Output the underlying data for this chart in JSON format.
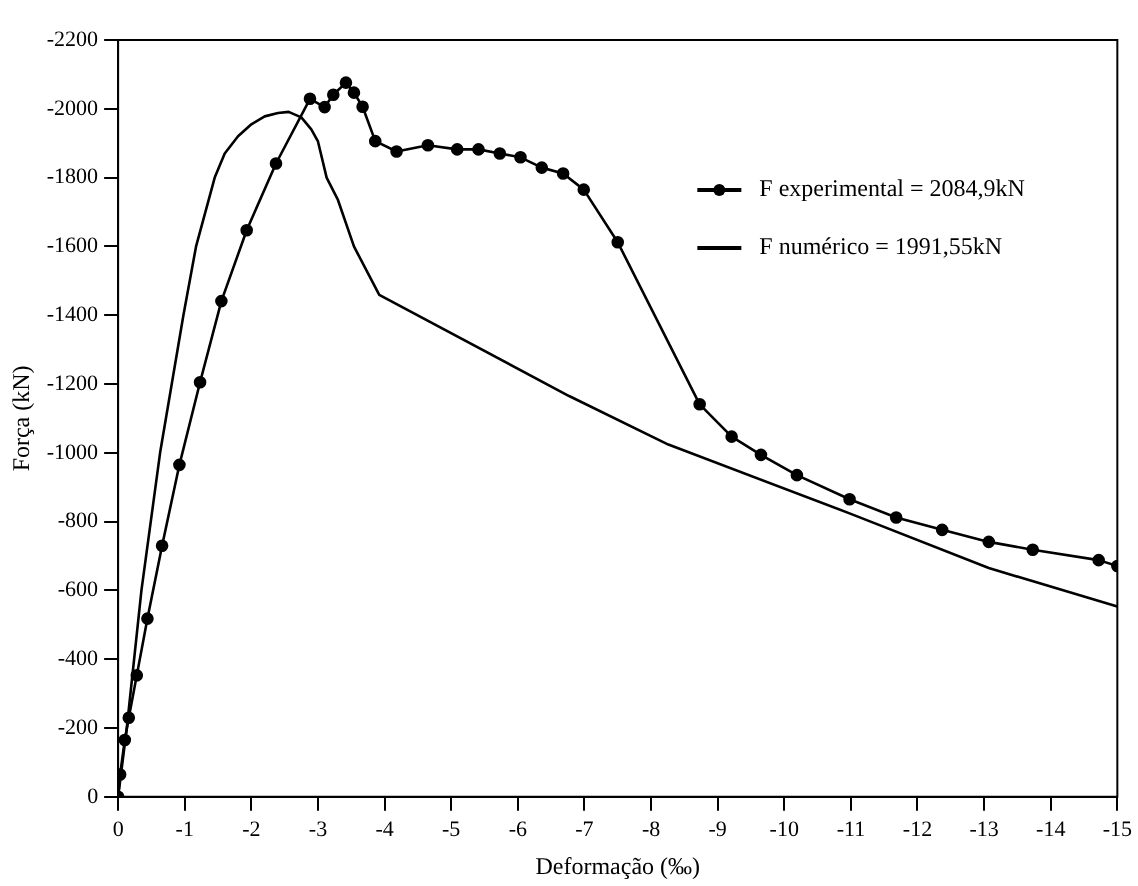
{
  "chart_data": {
    "type": "line",
    "xlabel": "Deformação (‰)",
    "ylabel": "Força (kN)",
    "xlim": [
      0,
      -15
    ],
    "ylim": [
      0,
      -2200
    ],
    "xticks": [
      0,
      -1,
      -2,
      -3,
      -4,
      -5,
      -6,
      -7,
      -8,
      -9,
      -10,
      -11,
      -12,
      -13,
      -14,
      -15
    ],
    "yticks": [
      0,
      -200,
      -400,
      -600,
      -800,
      -1000,
      -1200,
      -1400,
      -1600,
      -1800,
      -2000,
      -2200
    ],
    "legend": "top right",
    "grid": false,
    "series": [
      {
        "name": "F experimental = 2084,9kN",
        "color": "#000000",
        "marker": "circle",
        "x": [
          0,
          -0.03,
          -0.1,
          -0.16,
          -0.28,
          -0.44,
          -0.66,
          -0.92,
          -1.23,
          -1.55,
          -1.93,
          -2.37,
          -2.88,
          -3.1,
          -3.23,
          -3.42,
          -3.54,
          -3.67,
          -3.86,
          -4.18,
          -4.65,
          -5.09,
          -5.41,
          -5.73,
          -6.04,
          -6.36,
          -6.68,
          -6.99,
          -7.5,
          -8.73,
          -9.21,
          -9.65,
          -10.19,
          -10.98,
          -11.68,
          -12.37,
          -13.07,
          -13.73,
          -14.72,
          -15
        ],
        "values": [
          0,
          -65,
          -165,
          -230,
          -353,
          -518,
          -730,
          -965,
          -1205,
          -1441,
          -1647,
          -1841,
          -2029,
          -2005,
          -2041,
          -2076,
          -2047,
          -2006,
          -1906,
          -1876,
          -1894,
          -1882,
          -1882,
          -1870,
          -1859,
          -1829,
          -1812,
          -1765,
          -1612,
          -1141,
          -1047,
          -994,
          -935,
          -865,
          -812,
          -776,
          -741,
          -718,
          -688,
          -671
        ]
      },
      {
        "name": "F numérico = 1991,55kN",
        "color": "#000000",
        "marker": "none",
        "x": [
          0,
          -0.13,
          -0.35,
          -0.63,
          -0.98,
          -1.17,
          -1.45,
          -1.6,
          -1.8,
          -2.0,
          -2.2,
          -2.4,
          -2.56,
          -2.75,
          -2.9,
          -3.0,
          -3.13,
          -3.3,
          -3.54,
          -3.92,
          -6.77,
          -8.26,
          -10.98,
          -13.07,
          -15
        ],
        "values": [
          0,
          -200,
          -600,
          -1000,
          -1400,
          -1600,
          -1800,
          -1870,
          -1920,
          -1955,
          -1978,
          -1988,
          -1991,
          -1975,
          -1940,
          -1905,
          -1800,
          -1735,
          -1600,
          -1459,
          -1165,
          -1024,
          -824,
          -665,
          -553
        ]
      }
    ]
  }
}
